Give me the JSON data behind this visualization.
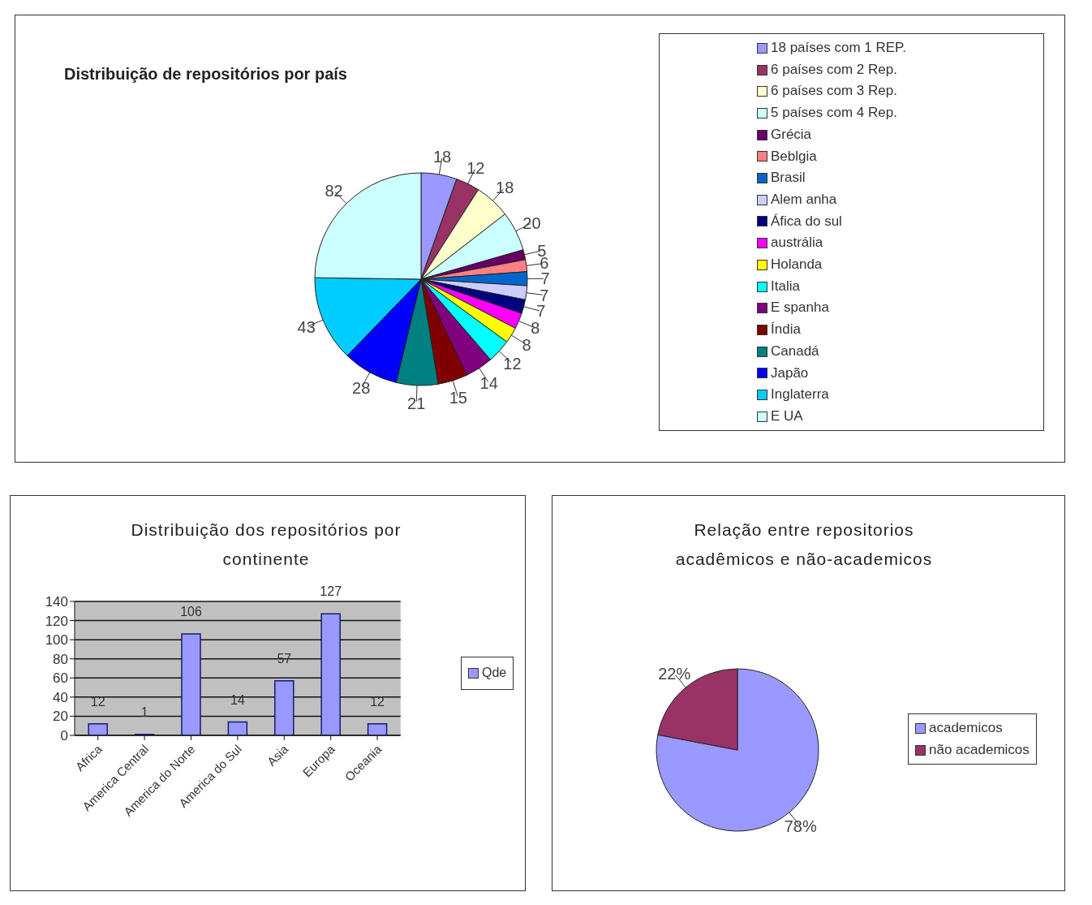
{
  "chart_data": [
    {
      "type": "pie",
      "title": "Distribuição de repositórios por país",
      "categories": [
        "18 países com 1 REP.",
        "6 países com 2 Rep.",
        "6 países com 3 Rep.",
        "5 países com 4 Rep.",
        "Grécia",
        "Beblgia",
        "Brasil",
        "Alem anha",
        "Áfica do sul",
        "austrália",
        "Holanda",
        "Italia",
        "E spanha",
        "Índia",
        "Canadá",
        "Japão",
        "Inglaterra",
        "E UA"
      ],
      "values": [
        18,
        12,
        18,
        20,
        5,
        6,
        7,
        7,
        7,
        8,
        8,
        12,
        14,
        15,
        21,
        28,
        43,
        82
      ],
      "colors": [
        "#9999ff",
        "#993366",
        "#ffffcc",
        "#ccffff",
        "#660066",
        "#ff8080",
        "#0066cc",
        "#ccccff",
        "#000080",
        "#ff00ff",
        "#ffff00",
        "#00ffff",
        "#800080",
        "#800000",
        "#008080",
        "#0000ff",
        "#00ccff",
        "#ccffff"
      ],
      "data_labels": true,
      "legend": "right"
    },
    {
      "type": "bar",
      "title": "Distribuição dos repositórios por continente",
      "categories": [
        "Africa",
        "America Central",
        "America do Norte",
        "America do Sul",
        "Asia",
        "Europa",
        "Oceania"
      ],
      "series": [
        {
          "name": "Qde",
          "color": "#9999ff",
          "values": [
            12,
            1,
            106,
            14,
            57,
            127,
            12
          ]
        }
      ],
      "ylim": [
        0,
        140
      ],
      "yticks": [
        0,
        20,
        40,
        60,
        80,
        100,
        120,
        140
      ],
      "grid": "y",
      "data_labels": true,
      "legend": "right"
    },
    {
      "type": "pie",
      "title": "Relação entre repositorios acadêmicos e não-academicos",
      "categories": [
        "academicos",
        "não academicos"
      ],
      "values": [
        78,
        22
      ],
      "value_labels": [
        "78%",
        "22%"
      ],
      "colors": [
        "#9999ff",
        "#993366"
      ],
      "legend": "right"
    }
  ]
}
